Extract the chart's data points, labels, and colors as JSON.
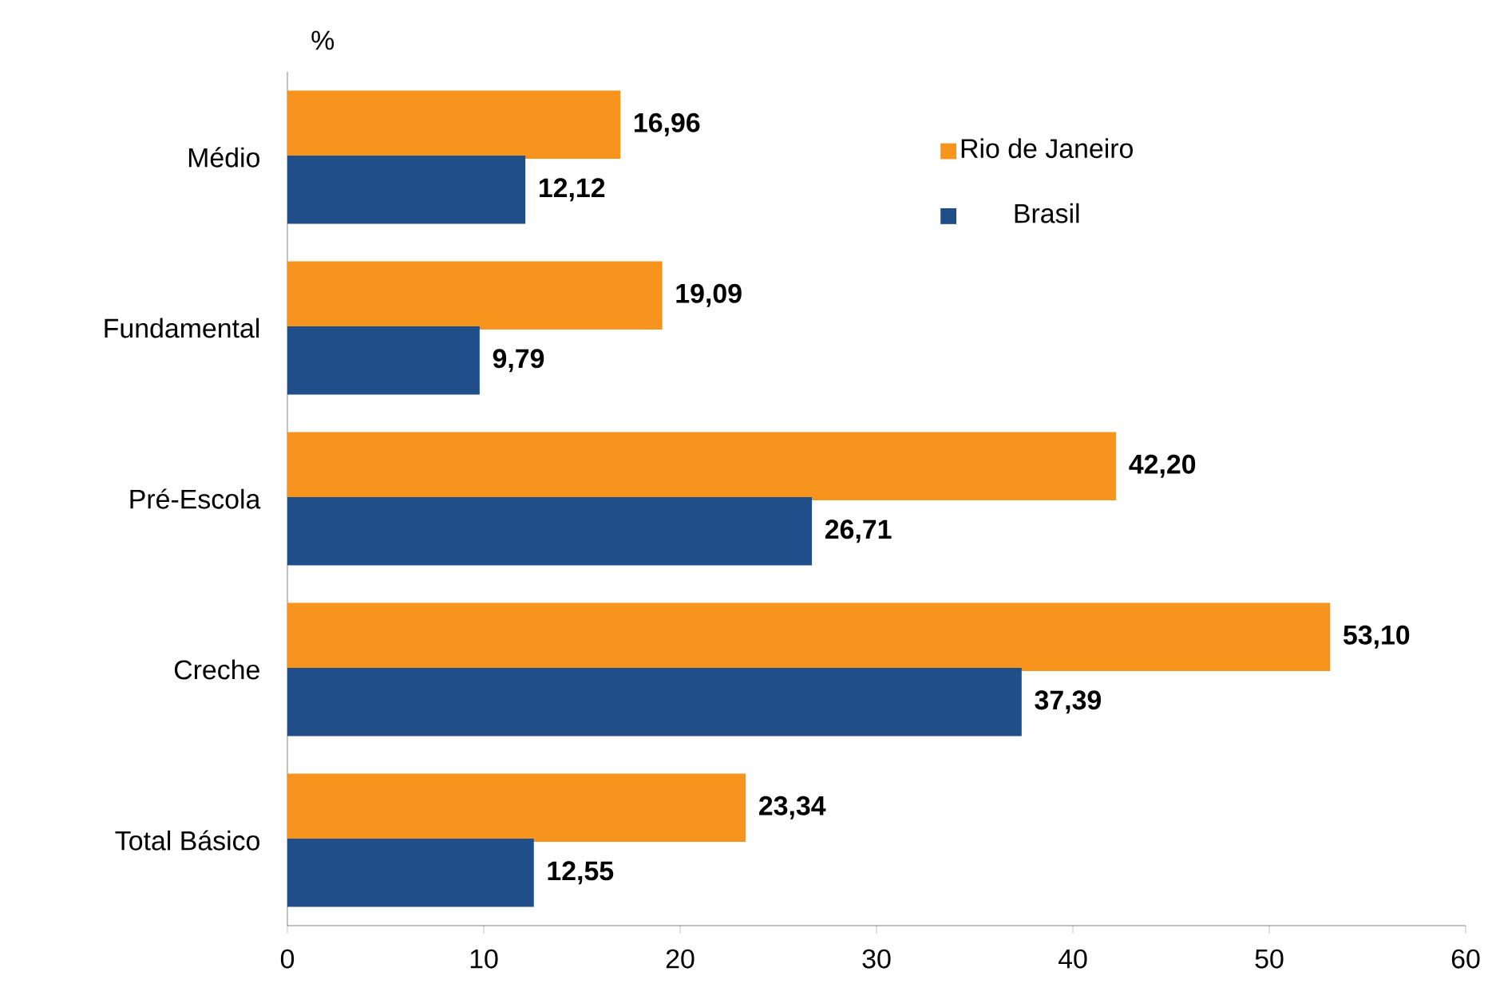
{
  "chart_data": {
    "type": "bar",
    "orientation": "horizontal",
    "xlabel": "%",
    "categories": [
      "Médio",
      "Fundamental",
      "Pré-Escola",
      "Creche",
      "Total Básico"
    ],
    "series": [
      {
        "name": "Rio de Janeiro",
        "color": "#f7941d",
        "values": [
          16.96,
          19.09,
          42.2,
          53.1,
          23.34
        ],
        "value_labels": [
          "16,96",
          "19,09",
          "42,20",
          "53,10",
          "23,34"
        ]
      },
      {
        "name": "Brasil",
        "color": "#1f4e89",
        "values": [
          12.12,
          9.79,
          26.71,
          37.39,
          12.55
        ],
        "value_labels": [
          "12,12",
          "9,79",
          "26,71",
          "37,39",
          "12,55"
        ]
      }
    ],
    "xlim": [
      0,
      60
    ],
    "xticks": [
      0,
      10,
      20,
      30,
      40,
      50,
      60
    ],
    "legend": "top right"
  }
}
